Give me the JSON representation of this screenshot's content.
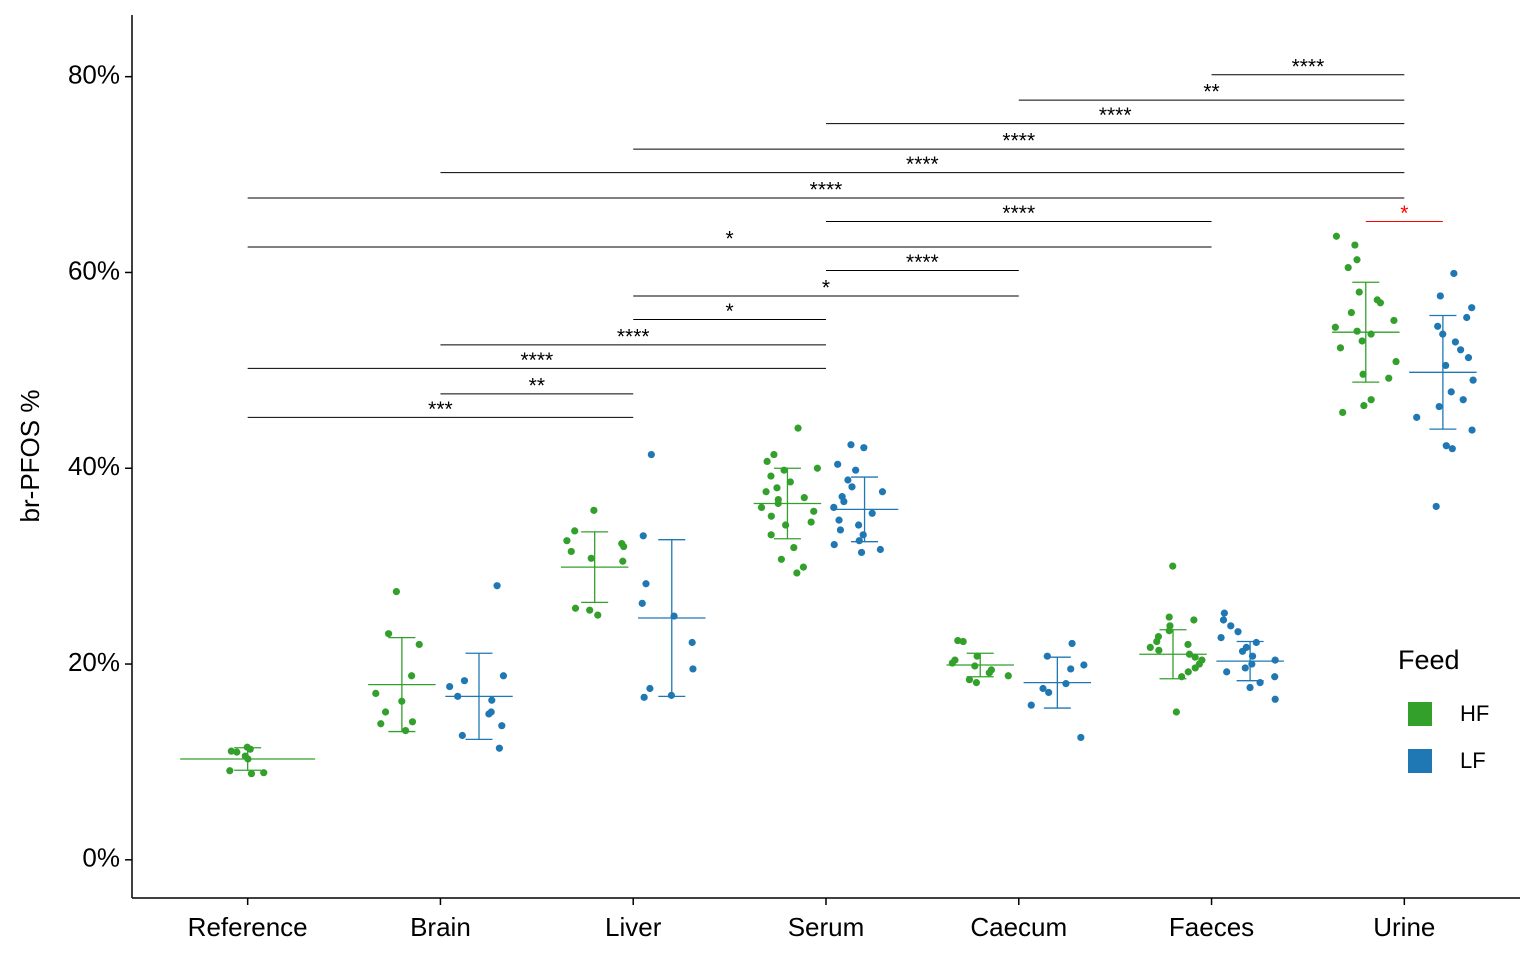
{
  "chart_data": {
    "type": "strip",
    "y_label": "br-PFOS %",
    "categories": [
      "Reference",
      "Brain",
      "Liver",
      "Serum",
      "Caecum",
      "Faeces",
      "Urine"
    ],
    "ylim": [
      -3.9,
      86.3
    ],
    "yticks": [
      {
        "value": 0,
        "label": "0%"
      },
      {
        "value": 20,
        "label": "20%"
      },
      {
        "value": 40,
        "label": "40%"
      },
      {
        "value": 60,
        "label": "60%"
      },
      {
        "value": 80,
        "label": "80%"
      }
    ],
    "legend_title": "Feed",
    "legend_position": "right",
    "series": [
      {
        "name": "HF",
        "color": "#33a02c",
        "values": [
          [
            11.5,
            11.3,
            11.1,
            11.0,
            10.6,
            10.3,
            9.1,
            8.9,
            8.8
          ],
          [
            27.4,
            23.1,
            22.0,
            18.8,
            17.0,
            16.2,
            15.1,
            14.1,
            13.9,
            13.2
          ],
          [
            35.7,
            33.6,
            32.6,
            32.3,
            32.0,
            31.5,
            30.8,
            30.5,
            25.7,
            25.5,
            25.0
          ],
          [
            44.1,
            41.4,
            40.7,
            40.0,
            39.8,
            39.2,
            38.6,
            38.0,
            37.6,
            37.0,
            36.8,
            36.4,
            36.0,
            35.6,
            35.1,
            34.5,
            34.2,
            33.2,
            31.9,
            30.7,
            29.9,
            29.3
          ],
          [
            22.4,
            22.3,
            20.8,
            20.4,
            20.1,
            19.8,
            19.4,
            19.1,
            18.8,
            18.4,
            18.1
          ],
          [
            30.0,
            24.8,
            24.5,
            23.9,
            23.4,
            22.8,
            22.3,
            22.0,
            21.7,
            21.4,
            21.0,
            20.7,
            20.4,
            20.0,
            19.6,
            19.2,
            18.7,
            15.1
          ],
          [
            63.7,
            62.8,
            61.3,
            60.5,
            58.0,
            57.2,
            56.9,
            55.9,
            55.1,
            54.4,
            54.0,
            53.7,
            53.0,
            52.3,
            50.9,
            49.6,
            49.2,
            47.0,
            46.4,
            45.7
          ]
        ],
        "mean": [
          10.3,
          17.9,
          29.9,
          36.4,
          19.9,
          21.0,
          53.9
        ],
        "sd": [
          1.15,
          4.8,
          3.6,
          3.6,
          1.2,
          2.5,
          5.1
        ]
      },
      {
        "name": "LF",
        "color": "#1f78b4",
        "values": [
          [],
          [
            28.0,
            18.8,
            18.3,
            17.7,
            16.7,
            16.3,
            15.1,
            14.9,
            13.7,
            12.7,
            11.4
          ],
          [
            41.4,
            33.1,
            28.2,
            26.2,
            24.9,
            22.2,
            19.5,
            17.5,
            16.8,
            16.6
          ],
          [
            42.4,
            42.1,
            40.4,
            39.8,
            38.8,
            38.1,
            37.6,
            37.1,
            36.6,
            36.0,
            35.4,
            34.7,
            34.2,
            33.7,
            33.2,
            32.6,
            32.2,
            31.7,
            31.4
          ],
          [
            22.1,
            20.8,
            19.9,
            19.5,
            18.0,
            17.5,
            17.1,
            15.8,
            12.5
          ],
          [
            25.2,
            24.5,
            23.9,
            23.3,
            22.7,
            22.2,
            21.7,
            21.3,
            20.8,
            20.4,
            20.0,
            19.6,
            19.2,
            18.7,
            18.1,
            17.6,
            16.4
          ],
          [
            59.9,
            57.6,
            56.4,
            55.4,
            54.5,
            53.7,
            52.9,
            52.1,
            51.3,
            50.5,
            49.0,
            47.8,
            47.0,
            46.3,
            45.2,
            43.9,
            42.3,
            42.0,
            36.1
          ]
        ],
        "mean": [
          null,
          16.7,
          24.7,
          35.8,
          18.1,
          20.3,
          49.8
        ],
        "sd": [
          null,
          4.4,
          8.0,
          3.3,
          2.6,
          2.0,
          5.8
        ]
      }
    ],
    "brackets": [
      {
        "from": "Reference",
        "to": "Liver",
        "y": 45.2,
        "label": "***"
      },
      {
        "from": "Brain",
        "to": "Liver",
        "y": 47.6,
        "label": "**"
      },
      {
        "from": "Reference",
        "to": "Serum",
        "y": 50.2,
        "label": "****"
      },
      {
        "from": "Brain",
        "to": "Serum",
        "y": 52.6,
        "label": "****"
      },
      {
        "from": "Liver",
        "to": "Serum",
        "y": 55.2,
        "label": "*"
      },
      {
        "from": "Liver",
        "to": "Caecum",
        "y": 57.6,
        "label": "*"
      },
      {
        "from": "Serum",
        "to": "Caecum",
        "y": 60.2,
        "label": "****"
      },
      {
        "from": "Reference",
        "to": "Faeces",
        "y": 62.6,
        "label": "*"
      },
      {
        "from": "Serum",
        "to": "Faeces",
        "y": 65.2,
        "label": "****"
      },
      {
        "from": "Reference",
        "to": "Urine",
        "y": 67.6,
        "label": "****"
      },
      {
        "from": "Brain",
        "to": "Urine",
        "y": 70.2,
        "label": "****"
      },
      {
        "from": "Liver",
        "to": "Urine",
        "y": 72.6,
        "label": "****"
      },
      {
        "from": "Serum",
        "to": "Urine",
        "y": 75.2,
        "label": "****"
      },
      {
        "from": "Caecum",
        "to": "Urine",
        "y": 77.6,
        "label": "**"
      },
      {
        "from": "Faeces",
        "to": "Urine",
        "y": 80.2,
        "label": "****"
      },
      {
        "category": "Urine",
        "from": "HF",
        "to": "LF",
        "y": 65.2,
        "label": "*",
        "color": "#ff0000"
      }
    ]
  }
}
